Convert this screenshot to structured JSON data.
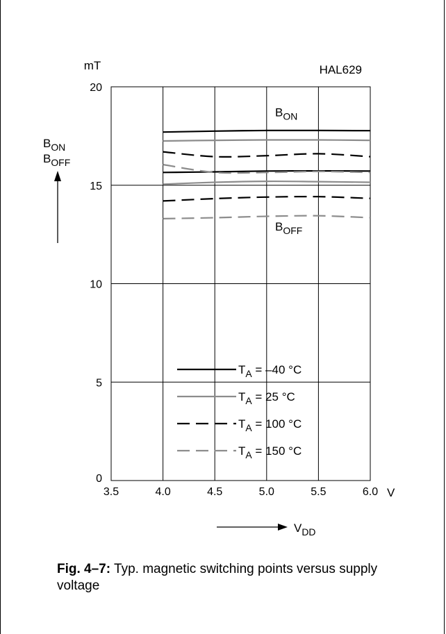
{
  "chart_data": {
    "type": "line",
    "title": "HAL629",
    "xlabel": {
      "main": "V",
      "sub": "DD"
    },
    "x_unit": "V",
    "ylabel": [
      {
        "main": "B",
        "sub": "ON"
      },
      {
        "main": "B",
        "sub": "OFF"
      }
    ],
    "y_unit": "mT",
    "xlim": [
      3.5,
      6.0
    ],
    "ylim": [
      0,
      20
    ],
    "x_ticks": [
      "3.5",
      "4.0",
      "4.5",
      "5.0",
      "5.5",
      "6.0"
    ],
    "y_ticks": [
      "0",
      "5",
      "10",
      "15",
      "20"
    ],
    "grid": true,
    "legend_position": "bottom-center",
    "annotations": [
      {
        "main": "B",
        "sub": "ON",
        "x": 5.35,
        "y": 18.0
      },
      {
        "main": "B",
        "sub": "OFF",
        "x": 5.35,
        "y": 12.2
      }
    ],
    "series": [
      {
        "name": "T_A = –40 °C",
        "label_main": "T",
        "label_sub": "A",
        "label_rest": " = –40 °C",
        "color": "#000000",
        "dash": "solid",
        "curves": [
          {
            "kind": "B_ON",
            "x": [
              4.0,
              4.5,
              5.0,
              5.5,
              6.0
            ],
            "y": [
              17.7,
              17.75,
              17.78,
              17.78,
              17.77
            ]
          },
          {
            "kind": "B_OFF",
            "x": [
              4.0,
              4.5,
              5.0,
              5.5,
              6.0
            ],
            "y": [
              15.65,
              15.68,
              15.72,
              15.73,
              15.72
            ]
          }
        ]
      },
      {
        "name": "T_A = 25 °C",
        "label_main": "T",
        "label_sub": "A",
        "label_rest": " = 25 °C",
        "color": "#8c8c8c",
        "dash": "solid",
        "curves": [
          {
            "kind": "B_ON",
            "x": [
              4.0,
              4.5,
              5.0,
              5.5,
              6.0
            ],
            "y": [
              17.25,
              17.28,
              17.3,
              17.3,
              17.28
            ]
          },
          {
            "kind": "B_OFF",
            "x": [
              4.0,
              4.5,
              5.0,
              5.5,
              6.0
            ],
            "y": [
              15.05,
              15.15,
              15.2,
              15.18,
              15.15
            ]
          }
        ]
      },
      {
        "name": "T_A = 100 °C",
        "label_main": "T",
        "label_sub": "A",
        "label_rest": " = 100 °C",
        "color": "#000000",
        "dash": "long-dash",
        "curves": [
          {
            "kind": "B_ON",
            "x": [
              4.0,
              4.5,
              5.0,
              5.5,
              6.0
            ],
            "y": [
              16.7,
              16.45,
              16.5,
              16.6,
              16.45
            ]
          },
          {
            "kind": "B_OFF",
            "x": [
              4.0,
              4.5,
              5.0,
              5.5,
              6.0
            ],
            "y": [
              14.2,
              14.32,
              14.4,
              14.42,
              14.33
            ]
          }
        ]
      },
      {
        "name": "T_A = 150 °C",
        "label_main": "T",
        "label_sub": "A",
        "label_rest": " = 150 °C",
        "color": "#8c8c8c",
        "dash": "long-dash",
        "curves": [
          {
            "kind": "B_ON",
            "x": [
              4.0,
              4.5,
              5.0,
              5.5,
              6.0
            ],
            "y": [
              16.05,
              15.65,
              15.65,
              15.7,
              15.65
            ]
          },
          {
            "kind": "B_OFF",
            "x": [
              4.0,
              4.5,
              5.0,
              5.5,
              6.0
            ],
            "y": [
              13.3,
              13.35,
              13.42,
              13.45,
              13.35
            ]
          }
        ]
      }
    ]
  },
  "caption": {
    "label": "Fig. 4–7:",
    "text": " Typ. magnetic switching points versus supply voltage"
  }
}
